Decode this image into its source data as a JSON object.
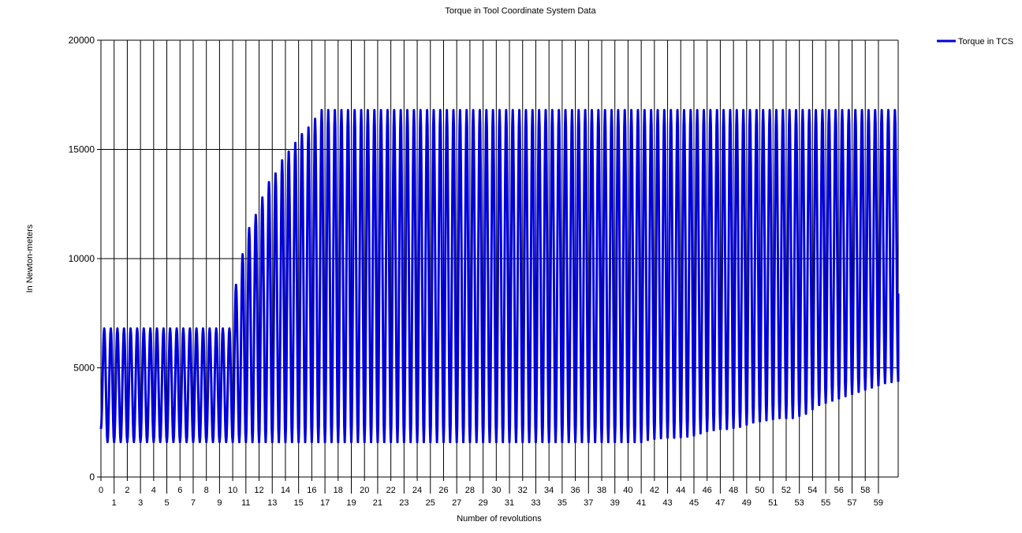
{
  "chart_data": {
    "type": "line",
    "title": "Torque in Tool Coordinate System Data",
    "xlabel": "Number of revolutions",
    "ylabel": "In Newton-meters",
    "xlim": [
      0,
      60.5
    ],
    "ylim": [
      0,
      20000
    ],
    "yticks": [
      0,
      5000,
      10000,
      15000,
      20000
    ],
    "xticks": [
      0,
      1,
      2,
      3,
      4,
      5,
      6,
      7,
      8,
      9,
      10,
      11,
      12,
      13,
      14,
      15,
      16,
      17,
      18,
      19,
      20,
      21,
      22,
      23,
      24,
      25,
      26,
      27,
      28,
      29,
      30,
      31,
      32,
      33,
      34,
      35,
      36,
      37,
      38,
      39,
      40,
      41,
      42,
      43,
      44,
      45,
      46,
      47,
      48,
      49,
      50,
      51,
      52,
      53,
      54,
      55,
      56,
      57,
      58,
      59
    ],
    "grid": true,
    "legend": "top-right",
    "series": [
      {
        "name": "Torque in TCS",
        "color": "#0000dd",
        "cycles_per_revolution": 2,
        "start_value": 2200,
        "end_value": 8400,
        "peaks": [
          6800,
          6800,
          6800,
          6800,
          6800,
          6800,
          6800,
          6800,
          6800,
          6800,
          6800,
          6800,
          6800,
          6800,
          6800,
          6800,
          6800,
          6800,
          6800,
          6800,
          8800,
          10200,
          11400,
          12000,
          12800,
          13500,
          13900,
          14500,
          14900,
          15300,
          15700,
          16000,
          16400,
          16800,
          16800,
          16800,
          16800,
          16800,
          16800,
          16800,
          16800,
          16800,
          16800,
          16800,
          16800,
          16800,
          16800,
          16800,
          16800,
          16800,
          16800,
          16800,
          16800,
          16800,
          16800,
          16800,
          16800,
          16800,
          16800,
          16800,
          16800,
          16800,
          16800,
          16800,
          16800,
          16800,
          16800,
          16800,
          16800,
          16800,
          16800,
          16800,
          16800,
          16800,
          16800,
          16800,
          16800,
          16800,
          16800,
          16800,
          16800,
          16800,
          16800,
          16800,
          16800,
          16800,
          16800,
          16800,
          16800,
          16800,
          16800,
          16800,
          16800,
          16800,
          16800,
          16800,
          16800,
          16800,
          16800,
          16800,
          16800,
          16800,
          16800,
          16800,
          16800,
          16800,
          16800,
          16800,
          16800,
          16800,
          16800,
          16800,
          16800,
          16800,
          16800,
          16800,
          16800,
          16800,
          16800,
          16800,
          16800
        ],
        "troughs": [
          1600,
          1600,
          1600,
          1600,
          1600,
          1600,
          1600,
          1600,
          1600,
          1600,
          1600,
          1600,
          1600,
          1600,
          1600,
          1600,
          1600,
          1600,
          1600,
          1600,
          1600,
          1600,
          1600,
          1600,
          1600,
          1600,
          1600,
          1600,
          1600,
          1600,
          1600,
          1600,
          1600,
          1600,
          1600,
          1600,
          1600,
          1600,
          1600,
          1600,
          1600,
          1600,
          1600,
          1600,
          1600,
          1600,
          1600,
          1600,
          1600,
          1600,
          1600,
          1600,
          1600,
          1600,
          1600,
          1600,
          1600,
          1600,
          1600,
          1600,
          1600,
          1600,
          1600,
          1600,
          1600,
          1600,
          1600,
          1600,
          1600,
          1600,
          1600,
          1600,
          1600,
          1600,
          1600,
          1600,
          1600,
          1600,
          1600,
          1600,
          1600,
          1600,
          1700,
          1750,
          1780,
          1800,
          1800,
          1820,
          1850,
          1900,
          2000,
          2100,
          2150,
          2200,
          2200,
          2250,
          2300,
          2400,
          2500,
          2550,
          2600,
          2650,
          2700,
          2700,
          2700,
          2800,
          2900,
          3100,
          3300,
          3400,
          3500,
          3600,
          3700,
          3800,
          3900,
          4000,
          4100,
          4200,
          4300,
          4350,
          4400
        ]
      }
    ]
  }
}
